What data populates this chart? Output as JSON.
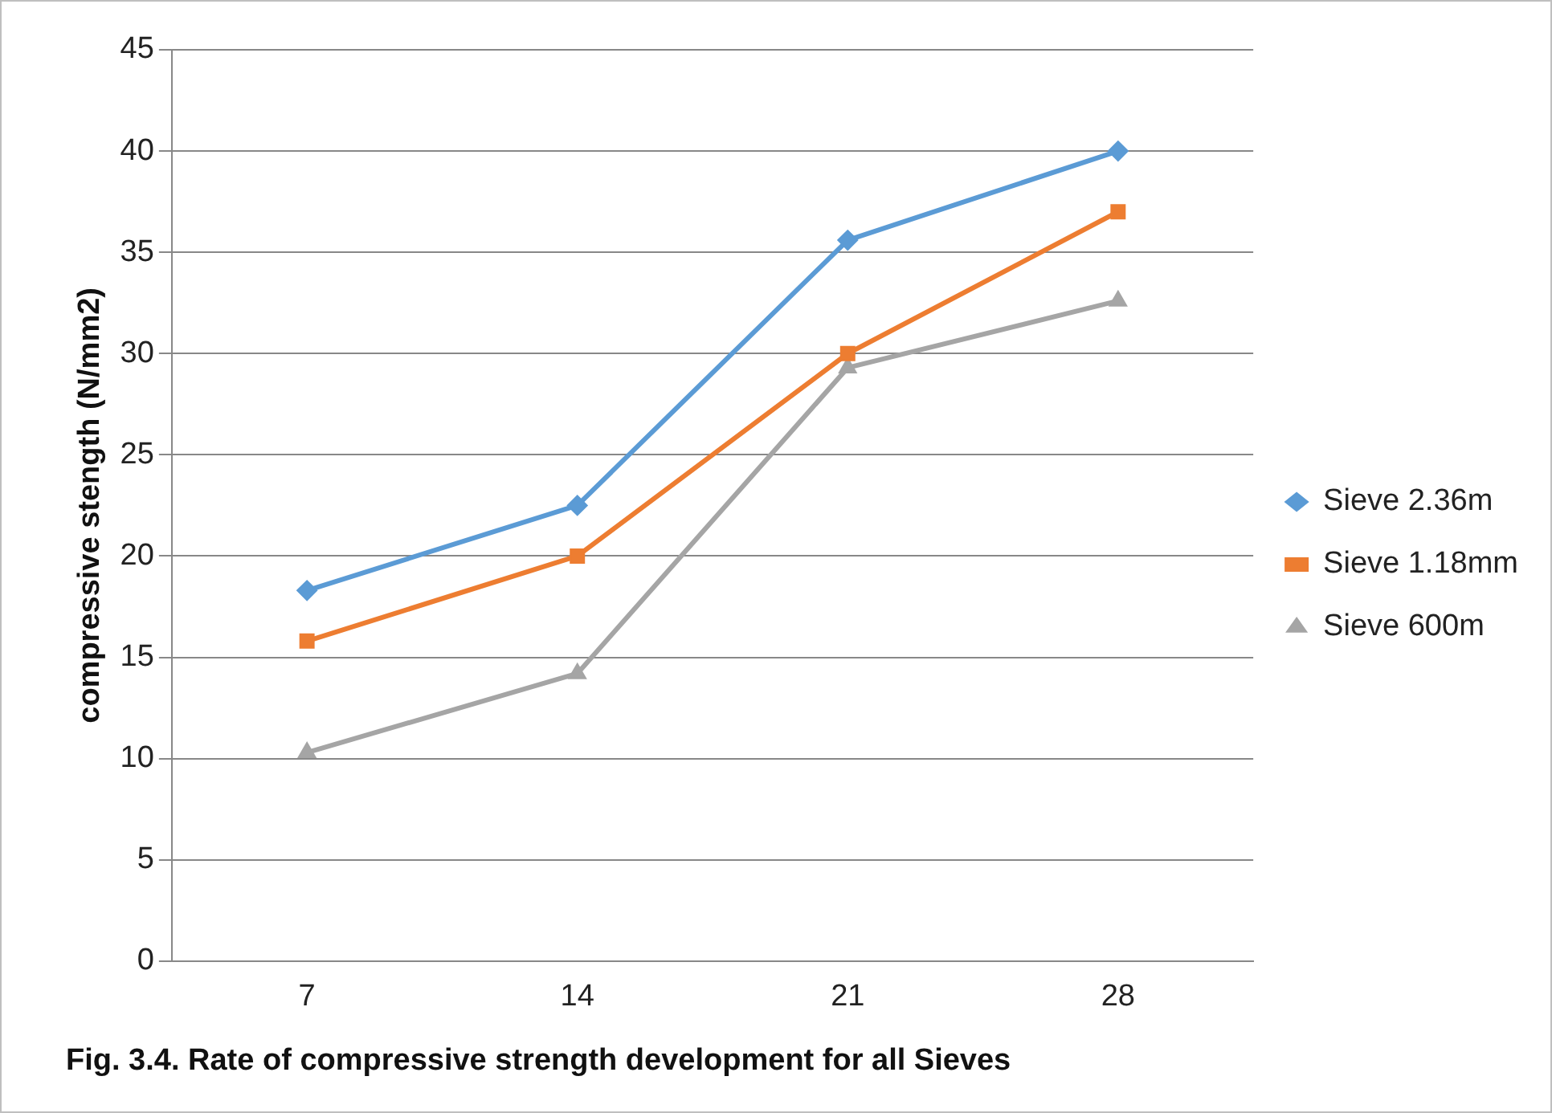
{
  "chart_data": {
    "type": "line",
    "title": "Fig. 3.4. Rate of compressive strength development for all Sieves",
    "ylabel": "compressive stength (N/mm2)",
    "categories": [
      "7",
      "14",
      "21",
      "28"
    ],
    "series": [
      {
        "name": "Sieve 2.36m",
        "color": "#5b9bd5",
        "marker": "diamond",
        "values": [
          18.3,
          22.5,
          35.6,
          40
        ]
      },
      {
        "name": "Sieve 1.18mm",
        "color": "#ed7d31",
        "marker": "square",
        "values": [
          15.8,
          20,
          30,
          37
        ]
      },
      {
        "name": "Sieve 600m",
        "color": "#a5a5a5",
        "marker": "triangle",
        "values": [
          10.3,
          14.2,
          29.3,
          32.6
        ]
      }
    ],
    "ylim": [
      0,
      45
    ],
    "yticks": [
      0,
      5,
      10,
      15,
      20,
      25,
      30,
      35,
      40,
      45
    ],
    "grid": "y",
    "legend": "right",
    "line_style": "solid"
  }
}
